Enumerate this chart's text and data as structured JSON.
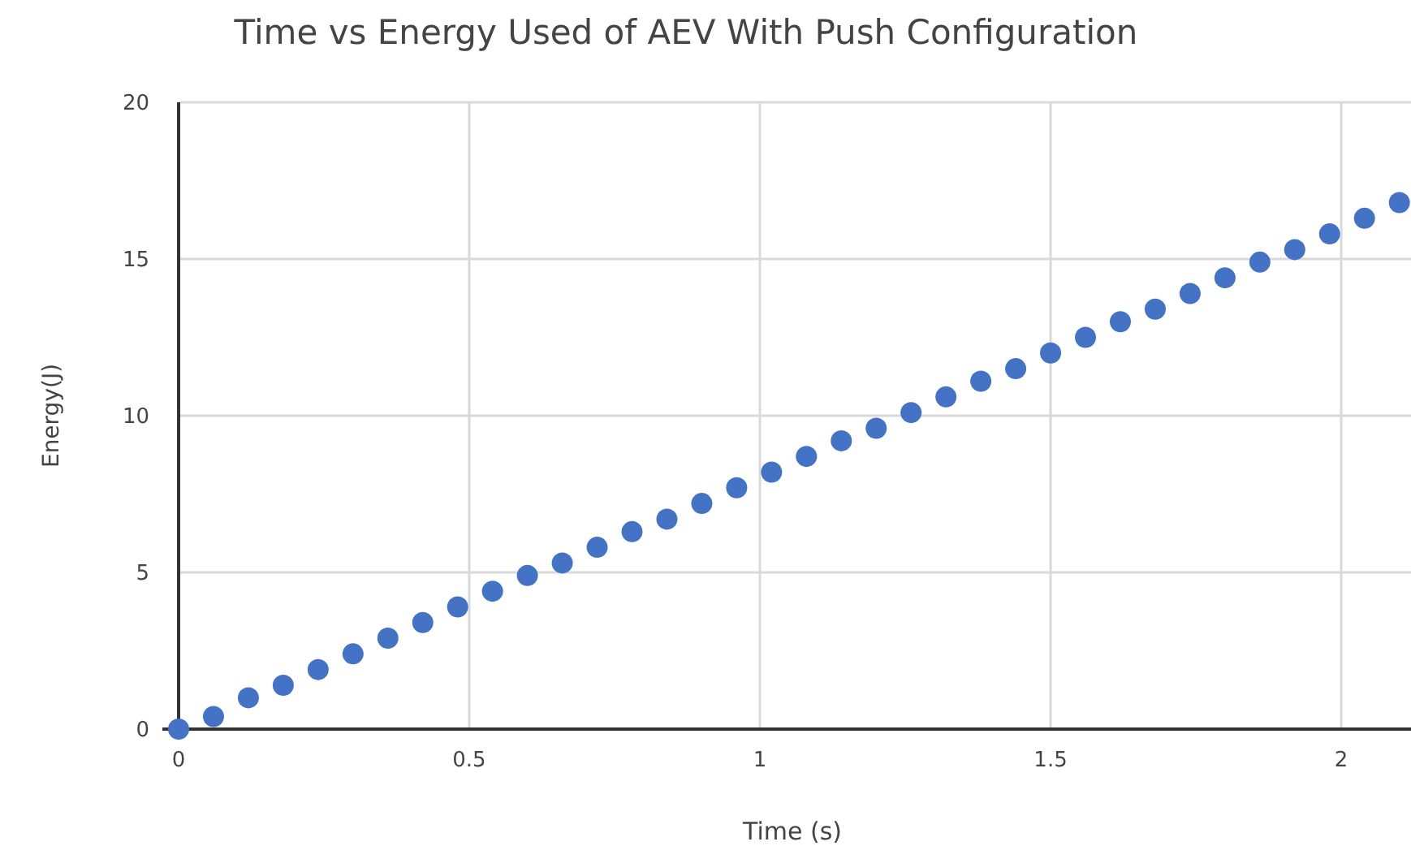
{
  "chart_data": {
    "type": "scatter",
    "title": "Time vs Energy Used of AEV With Push Configuration",
    "xlabel": "Time (s)",
    "ylabel": "Energy(J)",
    "x": [
      0,
      0.06,
      0.12,
      0.18,
      0.24,
      0.3,
      0.36,
      0.42,
      0.48,
      0.54,
      0.6,
      0.66,
      0.72,
      0.78,
      0.84,
      0.9,
      0.96,
      1.02,
      1.08,
      1.14,
      1.2,
      1.26,
      1.32,
      1.38,
      1.44,
      1.5,
      1.56,
      1.62,
      1.68,
      1.74,
      1.8,
      1.86,
      1.92,
      1.98,
      2.04,
      2.1
    ],
    "series": [
      {
        "color": "#4472c4",
        "values": [
          0,
          0.4,
          1.0,
          1.4,
          1.9,
          2.4,
          2.9,
          3.4,
          3.9,
          4.4,
          4.9,
          5.3,
          5.8,
          6.3,
          6.7,
          7.2,
          7.7,
          8.2,
          8.7,
          9.2,
          9.6,
          10.1,
          10.6,
          11.1,
          11.5,
          12.0,
          12.5,
          13.0,
          13.4,
          13.9,
          14.4,
          14.9,
          15.3,
          15.8,
          16.3,
          16.8
        ]
      }
    ],
    "xlim": [
      0,
      2.12
    ],
    "ylim": [
      0,
      20
    ],
    "xticks": [
      0,
      0.5,
      1,
      1.5,
      2
    ],
    "yticks": [
      0,
      5,
      10,
      15,
      20
    ],
    "grid": true,
    "marker": "circle"
  }
}
